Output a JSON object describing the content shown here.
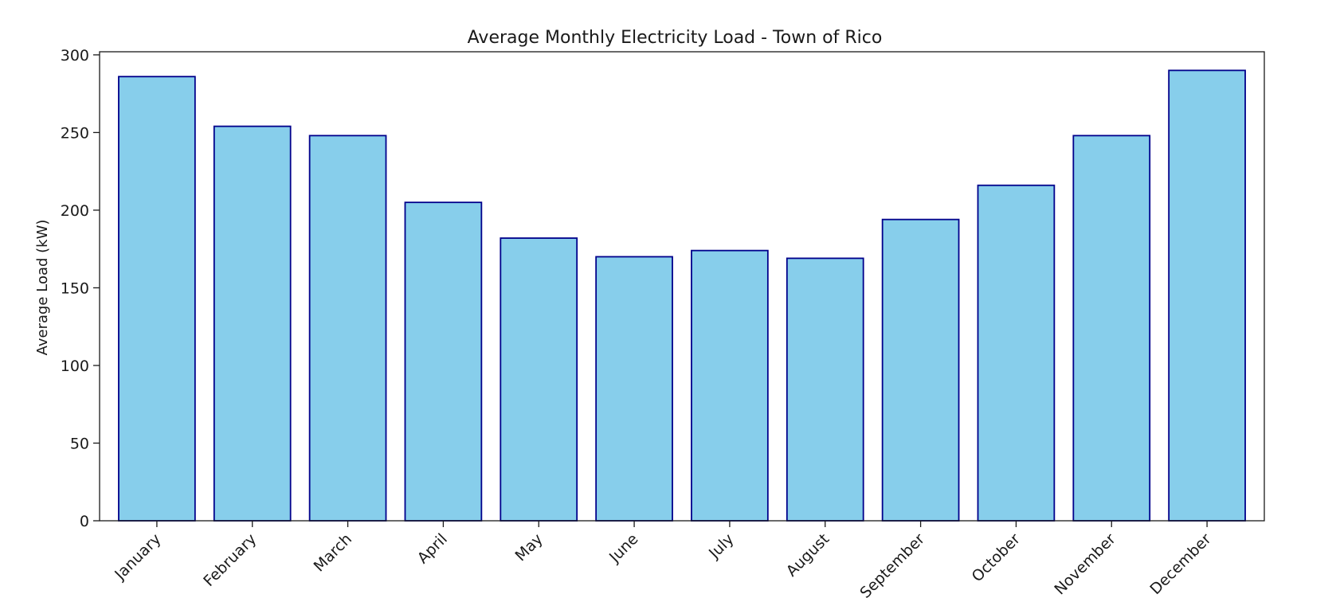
{
  "chart_data": {
    "type": "bar",
    "title": "Average Monthly Electricity Load - Town of Rico",
    "xlabel": "",
    "ylabel": "Average Load (kW)",
    "categories": [
      "January",
      "February",
      "March",
      "April",
      "May",
      "June",
      "July",
      "August",
      "September",
      "October",
      "November",
      "December"
    ],
    "values": [
      286,
      254,
      248,
      205,
      182,
      170,
      174,
      169,
      194,
      216,
      248,
      290
    ],
    "ylim": [
      0,
      302
    ],
    "yticks": [
      0,
      50,
      100,
      150,
      200,
      250,
      300
    ],
    "grid": false,
    "legend": "none",
    "colors": {
      "bar_fill": "#87CEEB",
      "bar_edge": "#00008B"
    }
  }
}
